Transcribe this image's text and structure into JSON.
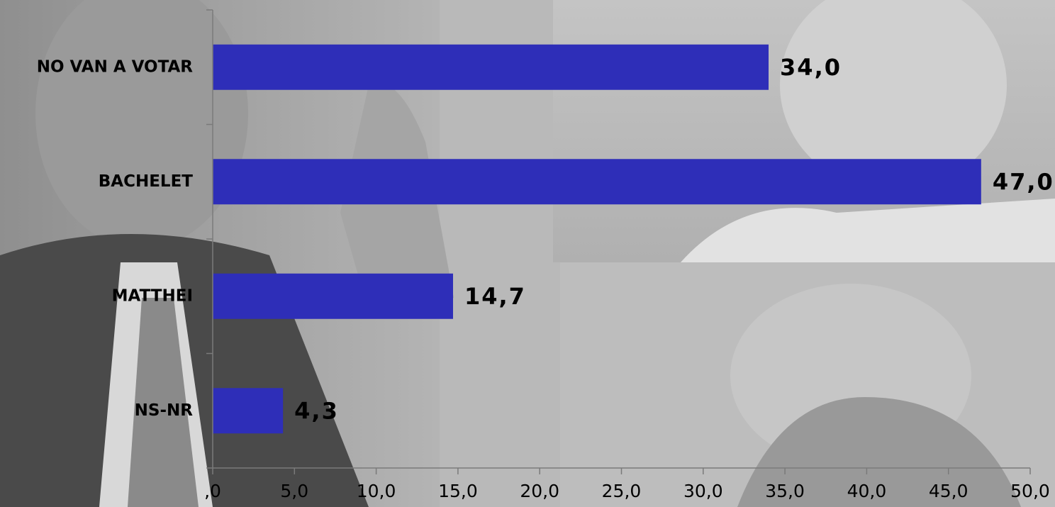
{
  "chart_data": {
    "type": "bar",
    "orientation": "horizontal",
    "categories": [
      "NO VAN A VOTAR",
      "BACHELET",
      "MATTHEI",
      "NS-NR"
    ],
    "values": [
      34.0,
      47.0,
      14.7,
      4.3
    ],
    "value_labels": [
      "34,0",
      "47,0",
      "14,7",
      "4,3"
    ],
    "xlim": [
      0,
      50
    ],
    "x_ticks": [
      0,
      5,
      10,
      15,
      20,
      25,
      30,
      35,
      40,
      45,
      50
    ],
    "x_tick_labels": [
      ",0",
      "5,0",
      "10,0",
      "15,0",
      "20,0",
      "25,0",
      "30,0",
      "35,0",
      "40,0",
      "45,0",
      "50,0"
    ],
    "title": "",
    "xlabel": "",
    "ylabel": "",
    "grid": false,
    "legend": "none",
    "bar_color": "#2e2eb8",
    "background": "grayscale photo of political figures"
  }
}
